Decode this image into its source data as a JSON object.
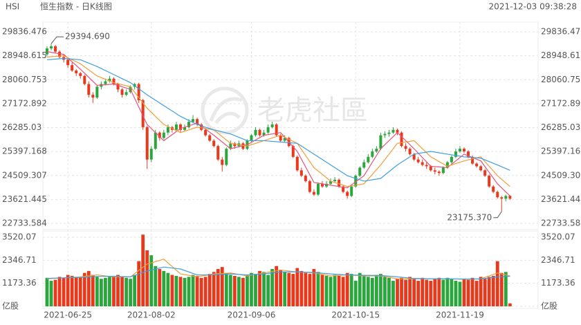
{
  "header": {
    "symbol": "HSI",
    "name": "恒生指数 - 日K线图",
    "time": "2021-12-03 09:38:28"
  },
  "watermark": "老虎社區",
  "chart_data": [
    {
      "type": "candlestick",
      "up_color": "#2aa63d",
      "down_color": "#e8391c",
      "ylim": [
        22733.584,
        29836.476
      ],
      "yticks": [
        29836.476,
        28948.615,
        28060.753,
        27172.892,
        26285.03,
        25397.168,
        24509.307,
        23621.445,
        22733.584
      ],
      "annotations": [
        "29394.690",
        "23175.370"
      ],
      "categories": [
        null,
        null,
        null,
        null,
        null,
        "2021-06-25",
        null,
        null,
        null,
        null,
        null,
        null,
        null,
        null,
        null,
        null,
        null,
        null,
        null,
        null,
        null,
        null,
        null,
        null,
        null,
        "2021-08-02",
        null,
        null,
        null,
        null,
        null,
        null,
        null,
        null,
        null,
        null,
        null,
        null,
        null,
        null,
        null,
        null,
        null,
        null,
        null,
        null,
        null,
        null,
        null,
        "2021-09-06",
        null,
        null,
        null,
        null,
        null,
        null,
        null,
        null,
        null,
        null,
        null,
        null,
        null,
        null,
        null,
        null,
        null,
        null,
        null,
        null,
        null,
        null,
        null,
        null,
        "2021-10-15",
        null,
        null,
        null,
        null,
        null,
        null,
        null,
        null,
        null,
        null,
        null,
        null,
        null,
        null,
        null,
        null,
        null,
        null,
        null,
        null,
        null,
        null,
        null,
        null,
        "2021-11-19",
        null,
        null,
        null,
        null,
        null,
        null,
        null,
        null,
        null,
        null,
        null,
        null
      ],
      "ohlc": [
        [
          29000,
          29300,
          28950,
          29220
        ],
        [
          29220,
          29394.69,
          29150,
          29300
        ],
        [
          29300,
          29350,
          29050,
          29100
        ],
        [
          29100,
          29150,
          28850,
          28900
        ],
        [
          28900,
          29000,
          28700,
          28800
        ],
        [
          28800,
          28850,
          28500,
          28600
        ],
        [
          28600,
          28700,
          28350,
          28400
        ],
        [
          28400,
          28450,
          28200,
          28300
        ],
        [
          28300,
          28350,
          28100,
          28200
        ],
        [
          28200,
          28250,
          27850,
          27900
        ],
        [
          27900,
          28000,
          27400,
          27500
        ],
        [
          27500,
          27600,
          27200,
          27400
        ],
        [
          27400,
          27850,
          27350,
          27800
        ],
        [
          27800,
          28000,
          27700,
          27900
        ],
        [
          27900,
          28100,
          27850,
          28000
        ],
        [
          28000,
          28200,
          27950,
          28100
        ],
        [
          28100,
          28150,
          27850,
          27900
        ],
        [
          27900,
          27950,
          27600,
          27700
        ],
        [
          27700,
          27750,
          27400,
          27500
        ],
        [
          27500,
          27700,
          27450,
          27600
        ],
        [
          27600,
          27850,
          27550,
          27800
        ],
        [
          27800,
          27950,
          27700,
          27900
        ],
        [
          27900,
          27950,
          27200,
          27300
        ],
        [
          27300,
          27350,
          26200,
          26300
        ],
        [
          26300,
          26350,
          24750,
          25100
        ],
        [
          25100,
          25600,
          25000,
          25500
        ],
        [
          25500,
          26200,
          25450,
          26100
        ],
        [
          26100,
          26150,
          25800,
          25900
        ],
        [
          25900,
          26200,
          25850,
          26100
        ],
        [
          26100,
          26400,
          26000,
          26300
        ],
        [
          26300,
          26350,
          26100,
          26200
        ],
        [
          26200,
          26500,
          26150,
          26400
        ],
        [
          26400,
          26450,
          26100,
          26200
        ],
        [
          26200,
          26400,
          26150,
          26300
        ],
        [
          26300,
          26600,
          26250,
          26500
        ],
        [
          26500,
          26750,
          26450,
          26600
        ],
        [
          26600,
          26650,
          26350,
          26400
        ],
        [
          26400,
          26450,
          26150,
          26200
        ],
        [
          26200,
          26250,
          25950,
          26000
        ],
        [
          26000,
          26050,
          25750,
          25800
        ],
        [
          25800,
          25850,
          25550,
          25600
        ],
        [
          25600,
          25650,
          25050,
          25100
        ],
        [
          25100,
          25200,
          24650,
          24900
        ],
        [
          24900,
          25550,
          24850,
          25500
        ],
        [
          25500,
          25800,
          25450,
          25700
        ],
        [
          25700,
          25750,
          25500,
          25600
        ],
        [
          25600,
          25800,
          25550,
          25700
        ],
        [
          25700,
          25750,
          25450,
          25500
        ],
        [
          25500,
          25850,
          25450,
          25800
        ],
        [
          25800,
          26050,
          25750,
          26000
        ],
        [
          26000,
          26300,
          25950,
          26200
        ],
        [
          26200,
          26250,
          25950,
          26000
        ],
        [
          26000,
          26200,
          25950,
          26100
        ],
        [
          26100,
          26400,
          26050,
          26300
        ],
        [
          26300,
          26500,
          26250,
          26400
        ],
        [
          26400,
          26450,
          25950,
          26000
        ],
        [
          26000,
          26050,
          25750,
          25800
        ],
        [
          25800,
          26000,
          25750,
          25900
        ],
        [
          25900,
          25950,
          25550,
          25600
        ],
        [
          25600,
          25650,
          25150,
          25200
        ],
        [
          25200,
          25250,
          24650,
          24700
        ],
        [
          24700,
          24800,
          24450,
          24500
        ],
        [
          24500,
          24550,
          24250,
          24300
        ],
        [
          24300,
          24350,
          23850,
          23900
        ],
        [
          23900,
          24000,
          23750,
          23800
        ],
        [
          23800,
          24250,
          23750,
          24200
        ],
        [
          24200,
          24300,
          24050,
          24100
        ],
        [
          24100,
          24300,
          24050,
          24200
        ],
        [
          24200,
          24400,
          24150,
          24300
        ],
        [
          24300,
          24450,
          24250,
          24350
        ],
        [
          24350,
          24400,
          24050,
          24100
        ],
        [
          24100,
          24150,
          23850,
          23900
        ],
        [
          23900,
          23950,
          23650,
          23750
        ],
        [
          23750,
          24150,
          23700,
          24100
        ],
        [
          24100,
          24550,
          24050,
          24500
        ],
        [
          24500,
          24850,
          24450,
          24800
        ],
        [
          24800,
          25100,
          24750,
          25000
        ],
        [
          25000,
          25300,
          24950,
          25200
        ],
        [
          25200,
          25500,
          25150,
          25400
        ],
        [
          25400,
          25600,
          25350,
          25500
        ],
        [
          25500,
          26100,
          25450,
          26000
        ],
        [
          26000,
          26150,
          25900,
          26050
        ],
        [
          26050,
          26200,
          25950,
          26100
        ],
        [
          26100,
          26300,
          26050,
          26200
        ],
        [
          26200,
          26250,
          26000,
          26100
        ],
        [
          26100,
          26150,
          25550,
          25600
        ],
        [
          25600,
          25700,
          25400,
          25500
        ],
        [
          25500,
          25550,
          25250,
          25300
        ],
        [
          25300,
          25350,
          25050,
          25100
        ],
        [
          25100,
          25200,
          24950,
          25000
        ],
        [
          25000,
          25100,
          24850,
          24900
        ],
        [
          24900,
          25000,
          24750,
          24850
        ],
        [
          24850,
          24900,
          24650,
          24700
        ],
        [
          24700,
          24800,
          24550,
          24650
        ],
        [
          24650,
          24700,
          24500,
          24600
        ],
        [
          24600,
          24850,
          24550,
          24800
        ],
        [
          24800,
          25050,
          24750,
          25000
        ],
        [
          25000,
          25250,
          24950,
          25200
        ],
        [
          25200,
          25500,
          25150,
          25400
        ],
        [
          25400,
          25600,
          25350,
          25500
        ],
        [
          25500,
          25550,
          25350,
          25400
        ],
        [
          25400,
          25450,
          25150,
          25200
        ],
        [
          25200,
          25250,
          24900,
          24950
        ],
        [
          24950,
          25000,
          24800,
          24850
        ],
        [
          24850,
          24900,
          24650,
          24700
        ],
        [
          24700,
          24750,
          24450,
          24500
        ],
        [
          24500,
          24550,
          24050,
          24100
        ],
        [
          24100,
          24150,
          23850,
          23900
        ],
        [
          23900,
          23950,
          23650,
          23700
        ],
        [
          23700,
          23750,
          23175.37,
          23650
        ],
        [
          23650,
          23800,
          23550,
          23750
        ],
        [
          23750,
          23780,
          23600,
          23650
        ]
      ],
      "series": [
        {
          "color": "#e8507a",
          "x": [
            0,
            4,
            8,
            12,
            16,
            20,
            24,
            28,
            32,
            36,
            40,
            44,
            48,
            52,
            56,
            60,
            64,
            68,
            72,
            76,
            80,
            84,
            88,
            92,
            96,
            100,
            104,
            108,
            111
          ],
          "values": [
            29100,
            29000,
            28450,
            27850,
            27900,
            27700,
            26400,
            25800,
            26250,
            26450,
            26000,
            25500,
            25650,
            26000,
            26100,
            25400,
            24250,
            24150,
            24050,
            24500,
            25500,
            26100,
            25500,
            24850,
            24800,
            25300,
            25050,
            24200,
            23750
          ]
        },
        {
          "color": "#f39c38",
          "x": [
            0,
            4,
            8,
            12,
            16,
            20,
            24,
            28,
            32,
            36,
            40,
            44,
            48,
            52,
            56,
            60,
            64,
            68,
            72,
            76,
            80,
            84,
            88,
            92,
            96,
            100,
            104,
            108,
            111
          ],
          "values": [
            28900,
            28950,
            28650,
            28200,
            27950,
            27800,
            27000,
            26400,
            26100,
            26300,
            26200,
            25700,
            25600,
            25800,
            26000,
            25700,
            24800,
            24300,
            24100,
            24200,
            24900,
            25700,
            25800,
            25200,
            24850,
            25050,
            25200,
            24500,
            24100
          ]
        },
        {
          "color": "#3d9ee0",
          "x": [
            0,
            4,
            8,
            12,
            16,
            20,
            24,
            28,
            32,
            36,
            40,
            44,
            48,
            52,
            56,
            60,
            64,
            68,
            72,
            76,
            80,
            84,
            88,
            92,
            96,
            100,
            104,
            108,
            111
          ],
          "values": [
            28800,
            28850,
            28800,
            28550,
            28250,
            27950,
            27500,
            27100,
            26700,
            26400,
            26200,
            26050,
            25800,
            25800,
            25750,
            25700,
            25300,
            24900,
            24500,
            24300,
            24400,
            24900,
            25300,
            25400,
            25300,
            25200,
            25150,
            24900,
            24700
          ]
        }
      ]
    },
    {
      "type": "bar",
      "ylim": [
        0,
        3520.07
      ],
      "yticks": [
        {
          "value": 0,
          "label": "亿股"
        },
        1173.36,
        2346.71,
        3520.07
      ],
      "values": [
        1450,
        1300,
        1350,
        1500,
        1450,
        1600,
        1550,
        1450,
        1500,
        1700,
        1800,
        1600,
        1500,
        1400,
        1450,
        1500,
        1550,
        1600,
        1500,
        1450,
        1400,
        1600,
        2300,
        3650,
        2850,
        2600,
        2050,
        1900,
        1800,
        1700,
        1600,
        1550,
        1500,
        1450,
        1500,
        1600,
        1550,
        1450,
        1500,
        1650,
        1750,
        1900,
        2000,
        1700,
        1600,
        1550,
        1500,
        1450,
        1600,
        1700,
        1650,
        1800,
        1750,
        1600,
        1900,
        2050,
        1850,
        1750,
        1700,
        1650,
        1950,
        1800,
        1700,
        1650,
        1900,
        1750,
        1600,
        1550,
        1500,
        1600,
        1550,
        1500,
        1700,
        1650,
        1300,
        1700,
        1550,
        1500,
        1450,
        1600,
        1650,
        1500,
        1450,
        1300,
        1400,
        1450,
        1350,
        1500,
        1400,
        1300,
        1450,
        1350,
        1300,
        1400,
        1450,
        1350,
        1450,
        1400,
        1300,
        1250,
        1400,
        1350,
        1450,
        1300,
        1500,
        1400,
        1500,
        1550,
        2300,
        1700,
        1750,
        150
      ],
      "series": [
        {
          "color": "#f39c38",
          "x": [
            0,
            4,
            8,
            12,
            16,
            20,
            24,
            28,
            32,
            36,
            40,
            44,
            48,
            52,
            56,
            60,
            64,
            68,
            72,
            76,
            80,
            84,
            88,
            92,
            96,
            100,
            104,
            108,
            111
          ],
          "values": [
            1400,
            1450,
            1500,
            1600,
            1500,
            1500,
            2150,
            2400,
            1650,
            1500,
            1650,
            1700,
            1550,
            1700,
            1850,
            1750,
            1700,
            1550,
            1600,
            1550,
            1550,
            1400,
            1400,
            1400,
            1400,
            1380,
            1400,
            1700,
            1550
          ]
        },
        {
          "color": "#3d9ee0",
          "x": [
            0,
            4,
            8,
            12,
            16,
            20,
            24,
            28,
            32,
            36,
            40,
            44,
            48,
            52,
            56,
            60,
            64,
            68,
            72,
            76,
            80,
            84,
            88,
            92,
            96,
            100,
            104,
            108,
            111
          ],
          "values": [
            1420,
            1450,
            1470,
            1520,
            1530,
            1500,
            1800,
            2000,
            1900,
            1600,
            1600,
            1650,
            1600,
            1650,
            1750,
            1750,
            1720,
            1650,
            1600,
            1580,
            1570,
            1500,
            1420,
            1400,
            1400,
            1390,
            1390,
            1500,
            1530
          ]
        }
      ]
    }
  ]
}
